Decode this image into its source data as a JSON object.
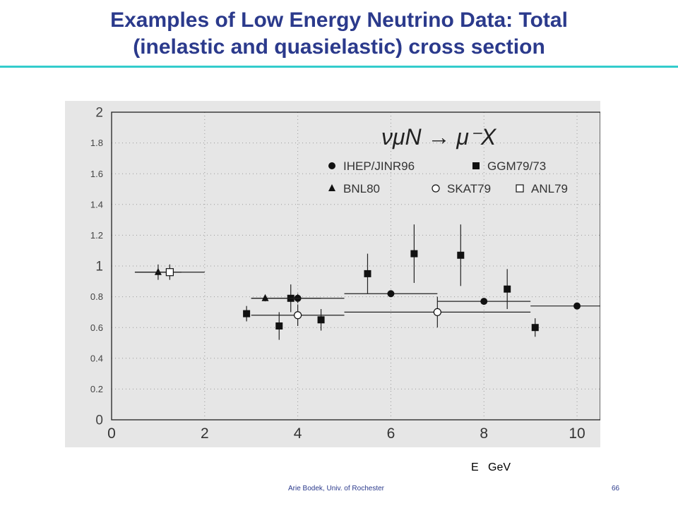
{
  "slide": {
    "title_line1": "Examples of Low Energy Neutrino Data: Total",
    "title_line2": "(inelastic and quasielastic) cross section",
    "footer_author": "Arie Bodek, Univ. of Rochester",
    "footer_page": "66",
    "title_color": "#2b3a8c",
    "rule_color": "#33cccc"
  },
  "chart_data": {
    "type": "scatter",
    "title": "",
    "xlabel": "E   GeV",
    "ylabel": "",
    "xlim": [
      0,
      10.5
    ],
    "ylim": [
      0,
      2
    ],
    "x_ticks": [
      "0",
      "2",
      "4",
      "6",
      "8",
      "10"
    ],
    "y_ticks": [
      "0",
      "0.2",
      "0.4",
      "0.6",
      "0.8",
      "1",
      "1.2",
      "1.4",
      "1.6",
      "1.8",
      "2"
    ],
    "grid": true,
    "background": "#e6e6e6",
    "reaction_label": "νμN → μ⁻X",
    "legend": [
      {
        "marker": "circle-filled",
        "label": "IHEP/JINR96"
      },
      {
        "marker": "square-filled",
        "label": "GGM79/73"
      },
      {
        "marker": "triangle-filled",
        "label": "BNL80"
      },
      {
        "marker": "circle-open",
        "label": "SKAT79"
      },
      {
        "marker": "square-open",
        "label": "ANL79"
      }
    ],
    "legend_placement": "top-right",
    "series": [
      {
        "name": "IHEP/JINR96",
        "marker": "circle-filled",
        "x": [
          4.0,
          6.0,
          8.0,
          10.0
        ],
        "y": [
          0.79,
          0.82,
          0.77,
          0.74
        ],
        "yerr": [
          0.03,
          0.02,
          0.02,
          0.01
        ],
        "xerr": [
          [
            3.0,
            5.0
          ],
          [
            5.0,
            7.0
          ],
          [
            7.0,
            9.0
          ],
          [
            9.0,
            11.0
          ]
        ]
      },
      {
        "name": "GGM79/73",
        "marker": "square-filled",
        "x": [
          2.9,
          3.6,
          3.85,
          4.5,
          5.5,
          6.5,
          7.5,
          8.5,
          9.1
        ],
        "y": [
          0.69,
          0.61,
          0.79,
          0.65,
          0.95,
          1.08,
          1.07,
          0.85,
          0.6
        ],
        "yerr": [
          0.05,
          0.09,
          0.09,
          0.07,
          0.13,
          0.19,
          0.2,
          0.13,
          0.06
        ]
      },
      {
        "name": "BNL80",
        "marker": "triangle-filled",
        "x": [
          1.0,
          3.3
        ],
        "y": [
          0.96,
          0.79
        ],
        "yerr": [
          0.05,
          0.02
        ],
        "xerr": [
          [
            0.5,
            1.5
          ],
          [
            3.0,
            4.5
          ]
        ]
      },
      {
        "name": "SKAT79",
        "marker": "circle-open",
        "x": [
          4.0,
          7.0
        ],
        "y": [
          0.68,
          0.7
        ],
        "yerr": [
          0.07,
          0.1
        ],
        "xerr": [
          [
            3.0,
            5.0
          ],
          [
            5.0,
            9.0
          ]
        ]
      },
      {
        "name": "ANL79",
        "marker": "square-open",
        "x": [
          1.25
        ],
        "y": [
          0.96
        ],
        "yerr": [
          0.05
        ],
        "xerr": [
          [
            0.5,
            2.0
          ]
        ]
      }
    ]
  }
}
